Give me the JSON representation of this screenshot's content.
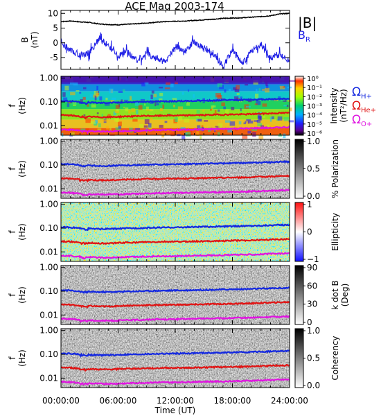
{
  "title": "ACE Mag 2003-174",
  "colors": {
    "magnitude": "#000000",
    "radial": "#1f1fe6",
    "proton_line": "#1428e0",
    "helium_line": "#e01414",
    "oxygen_line": "#e014e0"
  },
  "legend": {
    "B_mag": "|B|",
    "B_R_main": "B",
    "B_R_sub": "R",
    "omega": "Ω",
    "h_plus": "H+",
    "he_plus": "He+",
    "o_plus": "O+"
  },
  "chart_data": {
    "type": "line",
    "x_axis": {
      "label": "Time (UT)",
      "range_hours": [
        0,
        24
      ],
      "tick_labels": [
        "00:00:00",
        "06:00:00",
        "12:00:00",
        "18:00:00",
        "24:00:00"
      ]
    },
    "panels": [
      {
        "kind": "timeseries",
        "ylabel_main": "B",
        "ylabel_units": "(nT)",
        "ylim": [
          -9,
          11
        ],
        "yticks": [
          "10",
          "5",
          "0",
          "-5"
        ],
        "series": [
          {
            "name": "|B|",
            "color": "#000000",
            "profile": [
              7.2,
              7.4,
              7.1,
              6.9,
              6.4,
              6.2,
              6.1,
              6.3,
              6.5,
              6.7,
              7.0,
              7.2,
              7.3,
              7.4,
              7.6,
              7.8,
              8.0,
              8.3,
              8.4,
              8.5,
              8.7,
              8.9,
              9.2,
              9.8,
              10.0
            ]
          },
          {
            "name": "B_R",
            "color": "#1f1fe6",
            "profile": [
              0.0,
              -2.5,
              -4.0,
              -3.5,
              1.5,
              -1.0,
              -4.5,
              -3.0,
              -6.0,
              -3.5,
              -5.5,
              -6.5,
              -1.0,
              -3.0,
              0.5,
              -2.0,
              -3.5,
              -8.0,
              -2.5,
              -7.0,
              -3.0,
              -0.5,
              -5.0,
              -4.0,
              -6.0
            ]
          }
        ]
      },
      {
        "kind": "spectrogram",
        "ylabel_main": "f",
        "ylabel_units": "(Hz)",
        "ylim_log": [
          0.004,
          1.2
        ],
        "yticks": [
          "1.00",
          "0.10",
          "0.01"
        ],
        "colorbar": {
          "label_main": "Intensity",
          "label_units": "(nT²/Hz)",
          "ticks": [
            "10⁰",
            "10⁻¹",
            "10⁻²",
            "10⁻³",
            "10⁻⁴",
            "10⁻⁵",
            "10⁻⁶"
          ],
          "scale": "rainbow"
        }
      },
      {
        "kind": "spectrogram",
        "ylabel_main": "f",
        "ylabel_units": "(Hz)",
        "ylim_log": [
          0.004,
          1.2
        ],
        "yticks": [
          "1.00",
          "0.10",
          "0.01"
        ],
        "colorbar": {
          "label_main": "% Polarization",
          "label_units": "",
          "ticks": [
            "1.0",
            "0.5",
            "0.0"
          ],
          "scale": "gray"
        }
      },
      {
        "kind": "spectrogram",
        "ylabel_main": "f",
        "ylabel_units": "(Hz)",
        "ylim_log": [
          0.004,
          1.2
        ],
        "yticks": [
          "1.00",
          "0.10",
          "0.01"
        ],
        "colorbar": {
          "label_main": "Ellipticity",
          "label_units": "",
          "ticks": [
            "1",
            "0",
            "−1"
          ],
          "scale": "bwr"
        }
      },
      {
        "kind": "spectrogram",
        "ylabel_main": "f",
        "ylabel_units": "(Hz)",
        "ylim_log": [
          0.004,
          1.2
        ],
        "yticks": [
          "1.00",
          "0.10",
          "0.01"
        ],
        "colorbar": {
          "label_main": "k dot B",
          "label_units": "(Deg)",
          "ticks": [
            "90",
            "60",
            "30",
            "0"
          ],
          "scale": "gray"
        }
      },
      {
        "kind": "spectrogram",
        "ylabel_main": "f",
        "ylabel_units": "(Hz)",
        "ylim_log": [
          0.004,
          1.2
        ],
        "yticks": [
          "1.00",
          "0.10",
          "0.01"
        ],
        "colorbar": {
          "label_main": "Coherency",
          "label_units": "",
          "ticks": [
            "1.0",
            "0.5",
            "0.0"
          ],
          "scale": "gray"
        }
      }
    ],
    "gyrofrequencies_hz": {
      "H+": [
        0.11,
        0.108,
        0.1,
        0.095,
        0.092,
        0.093,
        0.095,
        0.098,
        0.1,
        0.102,
        0.105,
        0.106,
        0.108,
        0.109,
        0.112,
        0.114,
        0.115,
        0.118,
        0.12,
        0.122,
        0.125,
        0.128,
        0.132,
        0.135,
        0.138
      ],
      "He+": [
        0.028,
        0.027,
        0.025,
        0.024,
        0.023,
        0.023,
        0.024,
        0.025,
        0.025,
        0.026,
        0.026,
        0.027,
        0.027,
        0.027,
        0.028,
        0.028,
        0.029,
        0.029,
        0.03,
        0.03,
        0.031,
        0.032,
        0.033,
        0.034,
        0.035
      ],
      "O+": [
        0.007,
        0.0068,
        0.0063,
        0.006,
        0.0058,
        0.0058,
        0.0059,
        0.0061,
        0.0062,
        0.0064,
        0.0066,
        0.0066,
        0.0067,
        0.0068,
        0.007,
        0.0071,
        0.0072,
        0.0073,
        0.0075,
        0.0076,
        0.0078,
        0.008,
        0.0083,
        0.0085,
        0.0087
      ]
    }
  }
}
